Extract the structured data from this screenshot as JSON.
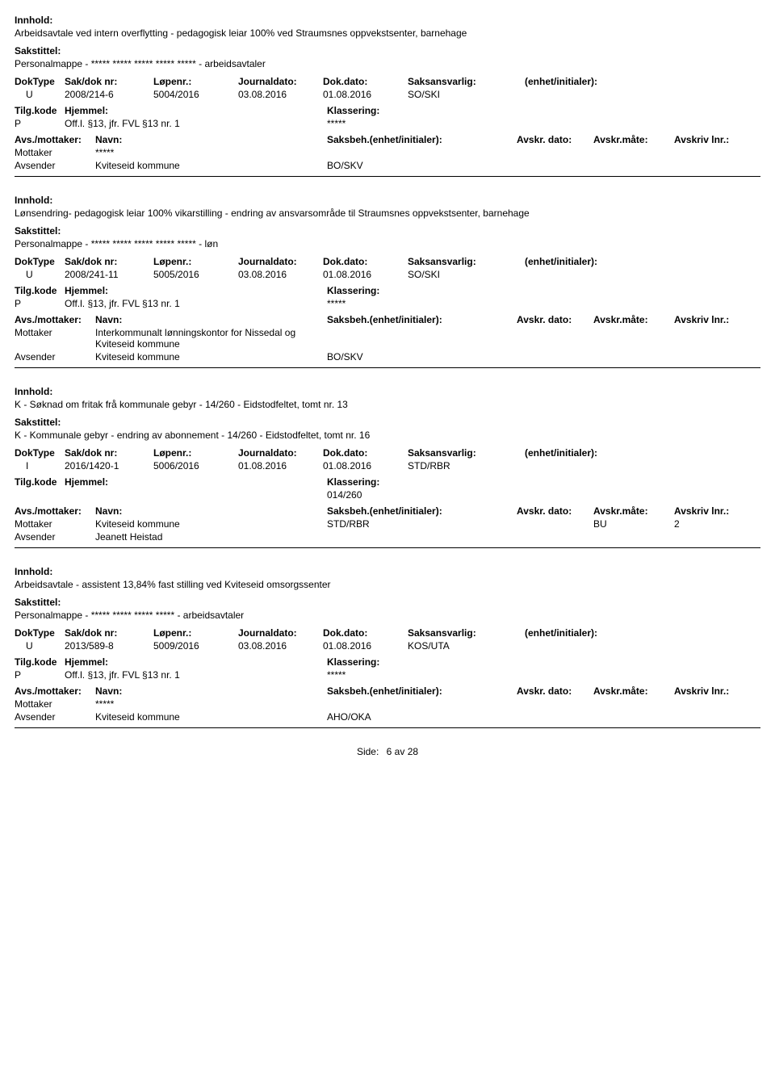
{
  "labels": {
    "innhold": "Innhold:",
    "sakstittel": "Sakstittel:",
    "doktype": "DokType",
    "sakdok": "Sak/dok nr:",
    "lopenr": "Løpenr.:",
    "journaldato": "Journaldato:",
    "dokdato": "Dok.dato:",
    "saksansvarlig": "Saksansvarlig:",
    "enhet": "(enhet/initialer):",
    "tilgkode": "Tilg.kode",
    "hjemmel": "Hjemmel:",
    "klassering": "Klassering:",
    "avsmottaker": "Avs./mottaker:",
    "navn": "Navn:",
    "saksbeh": "Saksbeh.(enhet/initialer):",
    "avskrdato": "Avskr. dato:",
    "avskrmote": "Avskr.måte:",
    "avskrlnr": "Avskriv lnr.:",
    "mottaker": "Mottaker",
    "avsender": "Avsender"
  },
  "footer": {
    "side_label": "Side:",
    "page": "6",
    "av": "av",
    "total": "28"
  },
  "records": [
    {
      "innhold": "Arbeidsavtale ved intern overflytting - pedagogisk leiar 100% ved Straumsnes oppvekstsenter, barnehage",
      "sakstittel": "Personalmappe - ***** ***** ***** ***** ***** - arbeidsavtaler",
      "doktype": "U",
      "sakdok": "2008/214-6",
      "lopenr": "5004/2016",
      "journaldato": "03.08.2016",
      "dokdato": "01.08.2016",
      "saksansvarlig": "SO/SKI",
      "enhet": "",
      "tilgkode": "P",
      "hjemmel": "Off.l. §13, jfr. FVL §13 nr. 1",
      "klassering": "*****",
      "parties": [
        {
          "role": "Mottaker",
          "navn": "*****",
          "saksbeh": "",
          "avskrdato": "",
          "avskrmote": "",
          "avskrlnr": ""
        },
        {
          "role": "Avsender",
          "navn": "Kviteseid kommune",
          "saksbeh": "BO/SKV",
          "avskrdato": "",
          "avskrmote": "",
          "avskrlnr": ""
        }
      ]
    },
    {
      "innhold": "Lønsendring-  pedagogisk leiar 100% vikarstilling - endring av ansvarsområde til Straumsnes oppvekstsenter, barnehage",
      "sakstittel": "Personalmappe - ***** ***** ***** ***** ***** - løn",
      "doktype": "U",
      "sakdok": "2008/241-11",
      "lopenr": "5005/2016",
      "journaldato": "03.08.2016",
      "dokdato": "01.08.2016",
      "saksansvarlig": "SO/SKI",
      "enhet": "",
      "tilgkode": "P",
      "hjemmel": "Off.l. §13, jfr. FVL §13 nr. 1",
      "klassering": "*****",
      "parties": [
        {
          "role": "Mottaker",
          "navn": "Interkommunalt lønningskontor for Nissedal og Kviteseid kommune",
          "saksbeh": "",
          "avskrdato": "",
          "avskrmote": "",
          "avskrlnr": ""
        },
        {
          "role": "Avsender",
          "navn": "Kviteseid kommune",
          "saksbeh": "BO/SKV",
          "avskrdato": "",
          "avskrmote": "",
          "avskrlnr": ""
        }
      ]
    },
    {
      "innhold": "K - Søknad om fritak frå kommunale gebyr - 14/260 - Eidstodfeltet, tomt nr. 13",
      "sakstittel": "K - Kommunale gebyr - endring av abonnement - 14/260 - Eidstodfeltet, tomt nr. 16",
      "doktype": "I",
      "sakdok": "2016/1420-1",
      "lopenr": "5006/2016",
      "journaldato": "01.08.2016",
      "dokdato": "01.08.2016",
      "saksansvarlig": "STD/RBR",
      "enhet": "",
      "tilgkode": "",
      "hjemmel": "",
      "klassering": "014/260",
      "parties": [
        {
          "role": "Mottaker",
          "navn": "Kviteseid kommune",
          "saksbeh": "STD/RBR",
          "avskrdato": "",
          "avskrmote": "BU",
          "avskrlnr": "2"
        },
        {
          "role": "Avsender",
          "navn": "Jeanett Heistad",
          "saksbeh": "",
          "avskrdato": "",
          "avskrmote": "",
          "avskrlnr": ""
        }
      ]
    },
    {
      "innhold": "Arbeidsavtale - assistent 13,84% fast stilling ved Kviteseid omsorgssenter",
      "sakstittel": "Personalmappe - ***** ***** ***** ***** - arbeidsavtaler",
      "doktype": "U",
      "sakdok": "2013/589-8",
      "lopenr": "5009/2016",
      "journaldato": "03.08.2016",
      "dokdato": "01.08.2016",
      "saksansvarlig": "KOS/UTA",
      "enhet": "",
      "tilgkode": "P",
      "hjemmel": "Off.l. §13, jfr. FVL §13 nr. 1",
      "klassering": "*****",
      "parties": [
        {
          "role": "Mottaker",
          "navn": "*****",
          "saksbeh": "",
          "avskrdato": "",
          "avskrmote": "",
          "avskrlnr": ""
        },
        {
          "role": "Avsender",
          "navn": "Kviteseid kommune",
          "saksbeh": "AHO/OKA",
          "avskrdato": "",
          "avskrmote": "",
          "avskrlnr": ""
        }
      ]
    }
  ]
}
